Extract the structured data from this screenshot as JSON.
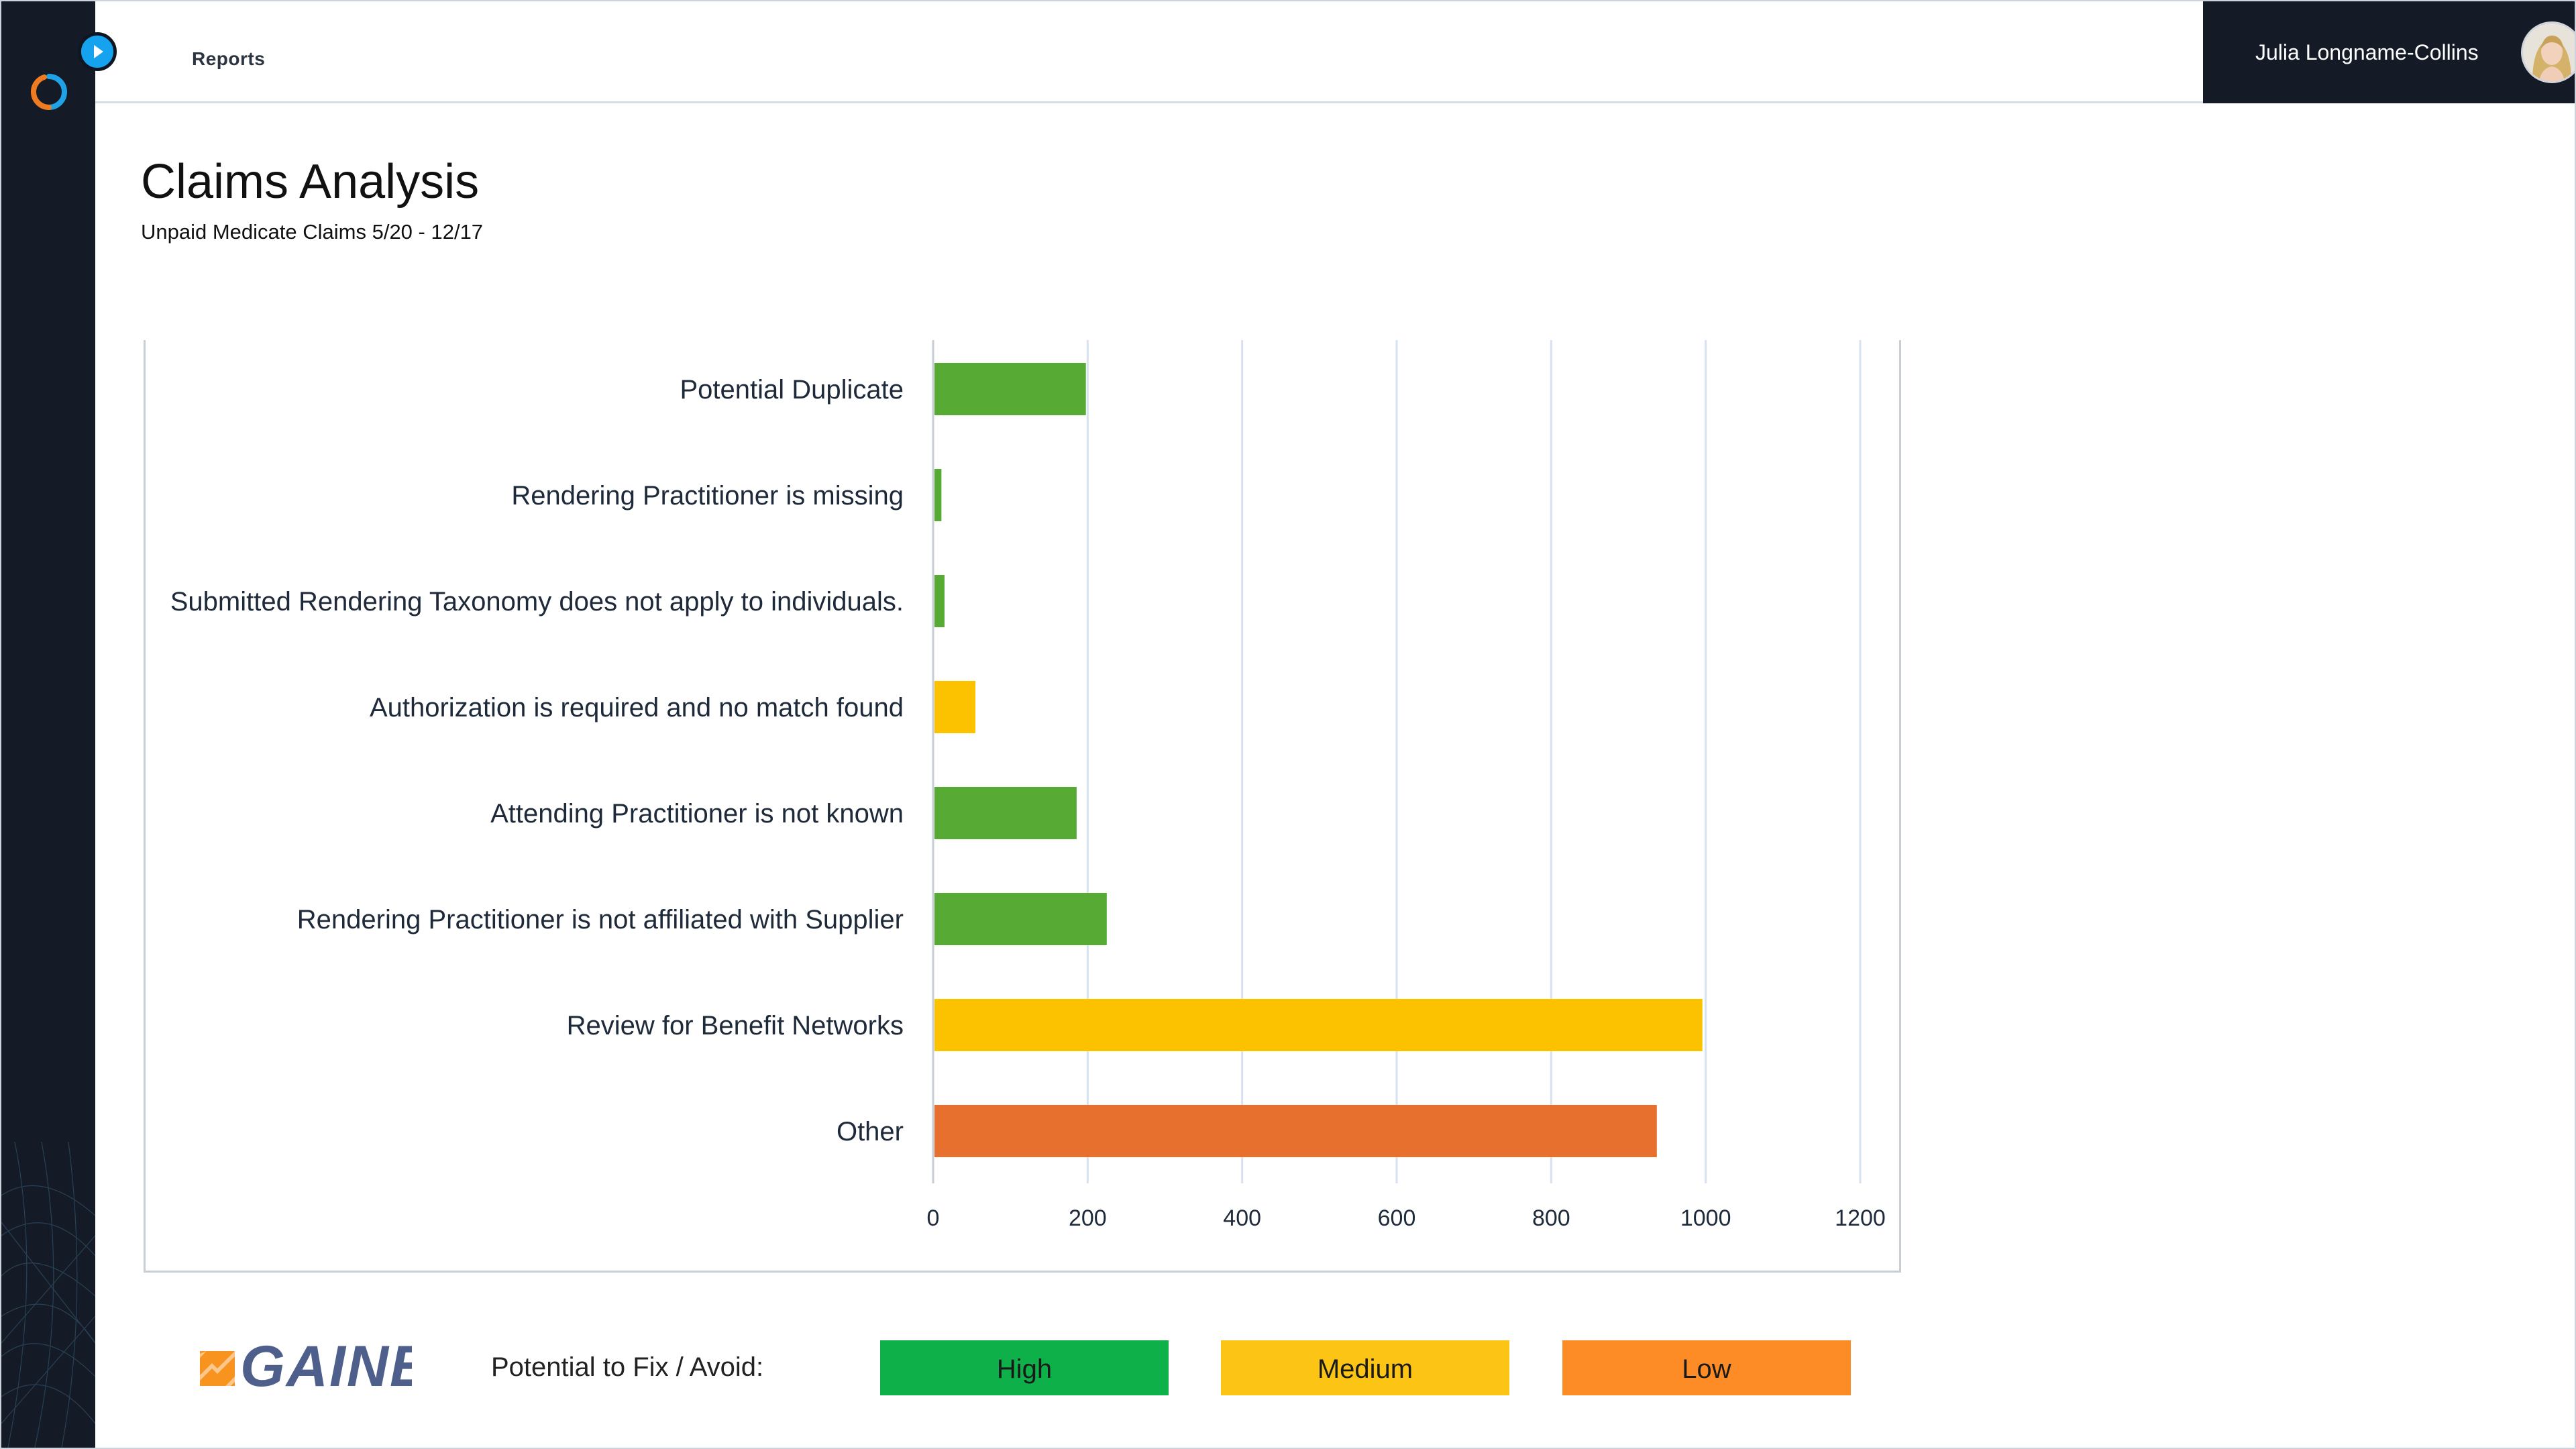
{
  "header": {
    "breadcrumb": "Reports",
    "user_name": "Julia Longname-Collins"
  },
  "page": {
    "title": "Claims Analysis",
    "subtitle": "Unpaid Medicate Claims 5/20 - 12/17"
  },
  "colors": {
    "high": "#57ab35",
    "medium": "#fcc200",
    "low": "#e8702f",
    "legend_high": "#0eb04a",
    "legend_medium": "#fcc414",
    "legend_low": "#fd8b26",
    "sidebar": "#141b26",
    "accent": "#15a3f0"
  },
  "chart_data": {
    "type": "bar",
    "orientation": "horizontal",
    "title": "",
    "xlabel": "",
    "ylabel": "",
    "xlim": [
      0,
      1200
    ],
    "ticks": [
      "0",
      "200",
      "400",
      "600",
      "800",
      "1000",
      "1200"
    ],
    "tick_values": [
      0,
      200,
      400,
      600,
      800,
      1000,
      1200
    ],
    "grid": true,
    "categories": [
      "Potential Duplicate",
      "Rendering Practitioner is missing",
      "Submitted Rendering Taxonomy does not apply to individuals.",
      "Authorization is required and no match found",
      "Attending Practitioner is not known",
      "Rendering Practitioner is not affiliated with Supplier",
      "Review for Benefit Networks",
      "Other"
    ],
    "values": [
      196,
      9,
      13,
      53,
      184,
      223,
      994,
      935
    ],
    "potential": [
      "high",
      "high",
      "high",
      "medium",
      "high",
      "high",
      "medium",
      "low"
    ]
  },
  "legend": {
    "title": "Potential to Fix / Avoid:",
    "items": [
      {
        "label": "High",
        "level": "high"
      },
      {
        "label": "Medium",
        "level": "medium"
      },
      {
        "label": "Low",
        "level": "low"
      }
    ]
  },
  "brand": {
    "name": "GAINE"
  }
}
